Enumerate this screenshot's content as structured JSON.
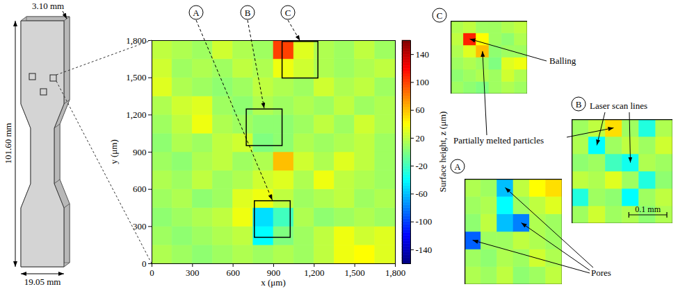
{
  "chart_data": {
    "type": "heatmap",
    "x_label": "x (μm)",
    "y_label": "y (μm)",
    "xlim": [
      0,
      1800
    ],
    "ylim": [
      0,
      1800
    ],
    "xticks": [
      0,
      300,
      600,
      900,
      {
        "value": 1200,
        "label": "1,200"
      },
      {
        "value": 1500,
        "label": "1,500"
      },
      {
        "value": 1800,
        "label": "1,800"
      }
    ],
    "yticks": [
      0,
      300,
      600,
      900,
      {
        "value": 1200,
        "label": "1,200"
      },
      {
        "value": 1500,
        "label": "1,500"
      },
      {
        "value": 1800,
        "label": "1,800"
      }
    ],
    "x_bins": [
      0,
      150,
      300,
      450,
      600,
      750,
      900,
      1050,
      1200,
      1350,
      1500,
      1650,
      1800
    ],
    "y_bins": [
      0,
      150,
      300,
      450,
      600,
      750,
      900,
      1050,
      1200,
      1350,
      1500,
      1650,
      1800
    ],
    "z": [
      [
        15,
        10,
        5,
        10,
        15,
        10,
        15,
        10,
        20,
        35,
        40,
        30
      ],
      [
        10,
        5,
        10,
        15,
        20,
        -40,
        0,
        10,
        20,
        35,
        25,
        30
      ],
      [
        5,
        10,
        15,
        20,
        35,
        -50,
        -20,
        15,
        5,
        10,
        15,
        10
      ],
      [
        10,
        15,
        5,
        10,
        30,
        35,
        20,
        10,
        15,
        20,
        10,
        15
      ],
      [
        15,
        10,
        20,
        10,
        15,
        25,
        30,
        15,
        35,
        20,
        15,
        10
      ],
      [
        10,
        5,
        15,
        20,
        10,
        15,
        60,
        25,
        15,
        30,
        20,
        10
      ],
      [
        5,
        15,
        10,
        20,
        25,
        0,
        5,
        15,
        10,
        15,
        20,
        10
      ],
      [
        10,
        20,
        35,
        15,
        10,
        5,
        5,
        10,
        20,
        10,
        25,
        15
      ],
      [
        15,
        25,
        30,
        10,
        5,
        15,
        10,
        15,
        10,
        20,
        10,
        15
      ],
      [
        30,
        15,
        10,
        5,
        10,
        20,
        15,
        10,
        25,
        15,
        20,
        10
      ],
      [
        25,
        10,
        15,
        10,
        20,
        15,
        35,
        25,
        15,
        10,
        15,
        20
      ],
      [
        20,
        15,
        10,
        25,
        15,
        10,
        100,
        30,
        15,
        10,
        20,
        10
      ]
    ],
    "colorbar": {
      "label": "Surface height, z (μm)",
      "range": [
        -160,
        160
      ],
      "ticks": [
        -140,
        -100,
        -60,
        -20,
        20,
        60,
        100,
        140
      ]
    }
  },
  "specimen": {
    "thickness_label": "3.10 mm",
    "length_label": "101.60 mm",
    "width_label": "19.05 mm"
  },
  "insets": [
    {
      "label": "A",
      "xlim": [
        760,
        1025
      ],
      "ylim": [
        210,
        505
      ],
      "z": [
        [
          15,
          10,
          20,
          5,
          10,
          20
        ],
        [
          10,
          5,
          15,
          10,
          25,
          15
        ],
        [
          -90,
          10,
          10,
          20,
          15,
          10
        ],
        [
          5,
          20,
          -60,
          -80,
          15,
          10
        ],
        [
          10,
          15,
          -40,
          10,
          20,
          30
        ],
        [
          15,
          10,
          -60,
          20,
          40,
          50
        ]
      ]
    },
    {
      "label": "B",
      "xlim": [
        700,
        965
      ],
      "ylim": [
        950,
        1245
      ],
      "z": [
        [
          10,
          25,
          10,
          15,
          5,
          15
        ],
        [
          -30,
          10,
          5,
          -40,
          10,
          20
        ],
        [
          20,
          15,
          30,
          10,
          -30,
          5
        ],
        [
          5,
          10,
          -20,
          -35,
          15,
          10
        ],
        [
          15,
          -40,
          10,
          20,
          10,
          25
        ],
        [
          10,
          20,
          50,
          10,
          -30,
          15
        ]
      ],
      "scale_bar": {
        "label": "0.1 mm",
        "length": 100
      }
    },
    {
      "label": "C",
      "xlim": [
        965,
        1230
      ],
      "ylim": [
        1495,
        1790
      ],
      "z": [
        [
          10,
          5,
          0,
          10,
          15,
          10
        ],
        [
          5,
          10,
          15,
          10,
          25,
          15
        ],
        [
          10,
          15,
          10,
          0,
          30,
          35
        ],
        [
          15,
          30,
          60,
          5,
          10,
          10
        ],
        [
          20,
          110,
          40,
          10,
          5,
          15
        ],
        [
          15,
          20,
          10,
          10,
          15,
          20
        ]
      ]
    }
  ],
  "annotations": [
    {
      "text": "Balling"
    },
    {
      "text": "Partially melted particles"
    },
    {
      "text": "Laser scan lines"
    },
    {
      "text": "Pores"
    }
  ]
}
